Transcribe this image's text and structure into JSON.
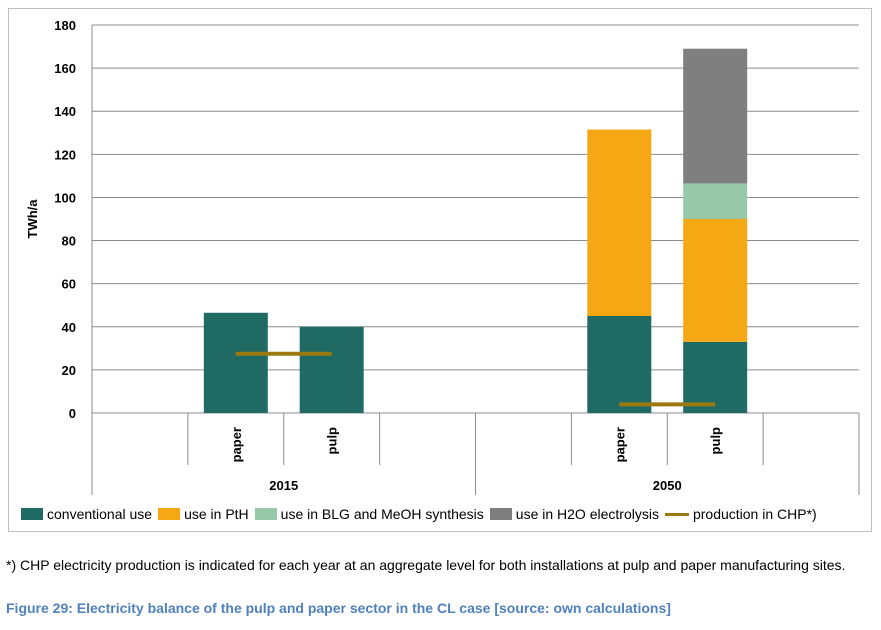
{
  "chart_data": {
    "type": "bar",
    "stacked": true,
    "ylabel": "TWh/a",
    "ylim": [
      0,
      180
    ],
    "yticks": [
      0,
      20,
      40,
      60,
      80,
      100,
      120,
      140,
      160,
      180
    ],
    "groups": [
      {
        "label": "2015",
        "categories": [
          "paper",
          "pulp"
        ]
      },
      {
        "label": "2050",
        "categories": [
          "paper",
          "pulp"
        ]
      }
    ],
    "series": [
      {
        "name": "conventional use",
        "color": "#1f6b63",
        "values": [
          46.5,
          40,
          45,
          33
        ]
      },
      {
        "name": "use in PtH",
        "color": "#f5a714",
        "values": [
          0,
          0,
          86.5,
          57
        ]
      },
      {
        "name": "use in BLG and MeOH synthesis",
        "color": "#97c9a8",
        "values": [
          0,
          0,
          0,
          16.5
        ]
      },
      {
        "name": "use in H2O electrolysis",
        "color": "#7f7f7f",
        "values": [
          0,
          0,
          0,
          62.5
        ]
      }
    ],
    "lines": [
      {
        "name": "production in CHP*)",
        "color": "#9c7a0f",
        "values_by_group": [
          27.5,
          4
        ]
      }
    ]
  },
  "legend": {
    "items": [
      {
        "label": "conventional use",
        "color": "#1f6b63",
        "kind": "box"
      },
      {
        "label": "use in PtH",
        "color": "#f5a714",
        "kind": "box"
      },
      {
        "label": "use in BLG and MeOH synthesis",
        "color": "#97c9a8",
        "kind": "box"
      },
      {
        "label": "use in H2O electrolysis",
        "color": "#7f7f7f",
        "kind": "box"
      },
      {
        "label": "production in CHP*)",
        "color": "#9c7a0f",
        "kind": "line"
      }
    ]
  },
  "footnote": "*) CHP electricity production is indicated for each year at an aggregate level for both installations at pulp and paper manufacturing sites.",
  "caption": "Figure 29: Electricity balance of the pulp and paper sector in the CL case [source: own calculations]"
}
